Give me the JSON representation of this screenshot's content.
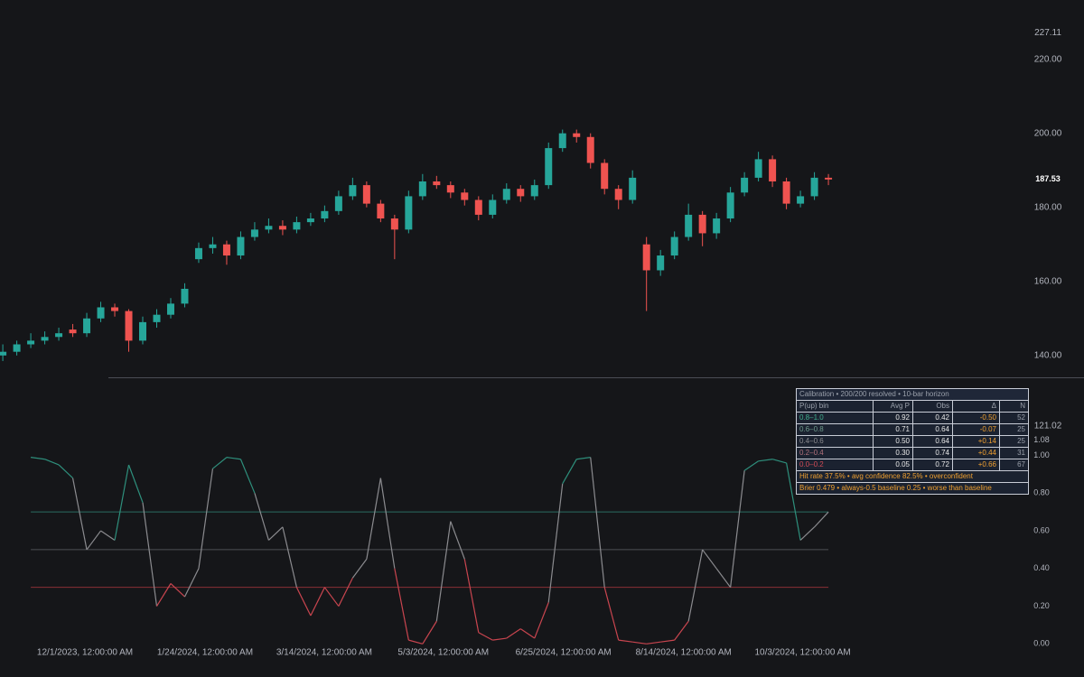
{
  "chart_data": [
    {
      "type": "candlestick",
      "up_color": "#26a69a",
      "down_color": "#ef5350",
      "xlim": [
        -0.2,
        72.1
      ],
      "ylim": [
        134.1,
        236
      ],
      "yticks": [
        {
          "value": 121.02,
          "label": "121.02"
        },
        {
          "value": 140,
          "label": "140.00"
        },
        {
          "value": 160,
          "label": "160.00"
        },
        {
          "value": 180,
          "label": "180.00"
        },
        {
          "value": 200,
          "label": "200.00"
        },
        {
          "value": 220,
          "label": "220.00"
        },
        {
          "value": 227.11,
          "label": "227.11"
        }
      ],
      "last_price": {
        "value": 187.53,
        "label": "187.53"
      },
      "candles": [
        [
          140,
          143,
          138.5,
          141
        ],
        [
          141,
          144,
          140,
          143
        ],
        [
          143,
          146,
          142,
          144
        ],
        [
          144,
          146.5,
          143,
          145
        ],
        [
          145,
          147.5,
          144,
          146
        ],
        [
          147,
          148.5,
          145,
          146
        ],
        [
          146,
          151.5,
          145,
          150
        ],
        [
          150,
          154.5,
          149,
          153
        ],
        [
          153,
          154,
          150.5,
          152
        ],
        [
          152,
          152.5,
          141,
          144
        ],
        [
          144,
          150.5,
          143,
          149
        ],
        [
          149,
          152.5,
          147.5,
          151
        ],
        [
          151,
          155.5,
          150,
          154
        ],
        [
          154,
          159.5,
          153,
          158
        ],
        [
          166,
          170.5,
          165,
          169
        ],
        [
          169,
          172,
          167.5,
          170
        ],
        [
          170,
          171,
          164.5,
          167
        ],
        [
          167,
          173.5,
          166,
          172
        ],
        [
          172,
          176,
          171,
          174
        ],
        [
          174,
          177,
          173,
          175
        ],
        [
          175,
          176.5,
          172.5,
          174
        ],
        [
          174,
          177.5,
          173,
          176
        ],
        [
          176,
          178.5,
          175,
          177
        ],
        [
          177,
          180.5,
          176,
          179
        ],
        [
          179,
          184.5,
          178,
          183
        ],
        [
          183,
          188,
          182,
          186
        ],
        [
          186,
          187,
          180,
          181
        ],
        [
          181,
          182,
          176,
          177
        ],
        [
          177,
          178,
          166,
          174
        ],
        [
          174,
          184.5,
          173,
          183
        ],
        [
          183,
          189,
          182,
          187
        ],
        [
          187,
          188.5,
          185,
          186
        ],
        [
          186,
          187,
          182.5,
          184
        ],
        [
          184,
          185,
          180.5,
          182
        ],
        [
          182,
          183,
          176.5,
          178
        ],
        [
          178,
          183.5,
          177,
          182
        ],
        [
          182,
          186.5,
          181,
          185
        ],
        [
          185,
          186,
          181.5,
          183
        ],
        [
          183,
          187.5,
          182,
          186
        ],
        [
          186,
          197.5,
          185,
          196
        ],
        [
          196,
          201,
          195,
          200
        ],
        [
          200,
          201,
          197.5,
          199
        ],
        [
          199,
          200,
          190.5,
          192
        ],
        [
          192,
          193,
          183.5,
          185
        ],
        [
          185,
          186,
          179.5,
          182
        ],
        [
          182,
          190,
          181,
          188
        ],
        [
          170,
          172,
          152,
          163
        ],
        [
          163,
          168.5,
          161.5,
          167
        ],
        [
          167,
          173.5,
          166,
          172
        ],
        [
          172,
          181,
          171,
          178
        ],
        [
          178,
          179,
          169.5,
          173
        ],
        [
          173,
          178.5,
          171.5,
          177
        ],
        [
          177,
          185.5,
          176,
          184
        ],
        [
          184,
          189.5,
          183,
          188
        ],
        [
          188,
          195,
          187,
          193
        ],
        [
          193,
          194,
          185.5,
          187
        ],
        [
          187,
          188,
          179.5,
          181
        ],
        [
          181,
          184.5,
          180,
          183
        ],
        [
          183,
          189.5,
          182,
          188
        ],
        [
          188,
          189,
          186,
          187.53
        ]
      ]
    },
    {
      "type": "line",
      "xlim": [
        -0.2,
        72.1
      ],
      "ylim": [
        -0.08,
        1.405
      ],
      "yticks": [
        {
          "value": 0,
          "label": "0.00"
        },
        {
          "value": 0.2,
          "label": "0.20"
        },
        {
          "value": 0.4,
          "label": "0.40"
        },
        {
          "value": 0.6,
          "label": "0.60"
        },
        {
          "value": 0.8,
          "label": "0.80"
        },
        {
          "value": 1,
          "label": "1.00"
        },
        {
          "value": 1.08,
          "label": "1.08"
        }
      ],
      "xticks": [
        {
          "value": 5.87,
          "label": "12/1/2023, 12:00:00 AM"
        },
        {
          "value": 14.45,
          "label": "1/24/2024, 12:00:00 AM"
        },
        {
          "value": 22.97,
          "label": "3/14/2024, 12:00:00 AM"
        },
        {
          "value": 31.48,
          "label": "5/3/2024, 12:00:00 AM"
        },
        {
          "value": 40.06,
          "label": "6/25/2024, 12:00:00 AM"
        },
        {
          "value": 48.65,
          "label": "8/14/2024, 12:00:00 AM"
        },
        {
          "value": 57.16,
          "label": "10/3/2024, 12:00:00 AM"
        }
      ],
      "levels": [
        {
          "value": 0.7,
          "color": "#2b6e62"
        },
        {
          "value": 0.5,
          "color": "#4d4f55"
        },
        {
          "value": 0.3,
          "color": "#8a2f36"
        }
      ],
      "colors": {
        "high": "#2e8f7c",
        "mid": "#8b8b8f",
        "low": "#c9454f"
      },
      "x": [
        2,
        3,
        4,
        5,
        6,
        7,
        8,
        9,
        10,
        11,
        12,
        13,
        14,
        15,
        16,
        17,
        18,
        19,
        20,
        21,
        22,
        23,
        24,
        25,
        26,
        27,
        28,
        29,
        30,
        31,
        32,
        33,
        34,
        35,
        36,
        37,
        38,
        39,
        40,
        41,
        42,
        43,
        44,
        45,
        46,
        47,
        48,
        49,
        50,
        51,
        52,
        53,
        54,
        55,
        56,
        57,
        58,
        59
      ],
      "values": [
        0.99,
        0.98,
        0.95,
        0.88,
        0.5,
        0.6,
        0.55,
        0.95,
        0.75,
        0.2,
        0.32,
        0.25,
        0.4,
        0.93,
        0.99,
        0.98,
        0.8,
        0.55,
        0.62,
        0.3,
        0.15,
        0.3,
        0.2,
        0.35,
        0.45,
        0.88,
        0.4,
        0.02,
        0.0,
        0.12,
        0.65,
        0.45,
        0.06,
        0.02,
        0.03,
        0.08,
        0.03,
        0.22,
        0.85,
        0.98,
        0.99,
        0.3,
        0.02,
        0.01,
        0.0,
        0.01,
        0.02,
        0.12,
        0.5,
        0.4,
        0.3,
        0.92,
        0.97,
        0.98,
        0.96,
        0.55,
        0.62,
        0.7
      ]
    }
  ],
  "table": {
    "title": "Calibration • 200/200 resolved • 10-bar horizon",
    "header": [
      "P(up) bin",
      "Avg P",
      "Obs",
      "Δ",
      "N"
    ],
    "row_colors": [
      "#3fae8e",
      "#6f9a8c",
      "#8b8b8f",
      "#b0707a",
      "#d04a55"
    ],
    "rows": [
      [
        "0.8–1.0",
        "0.92",
        "0.42",
        "-0.50",
        "52"
      ],
      [
        "0.6–0.8",
        "0.71",
        "0.64",
        "-0.07",
        "25"
      ],
      [
        "0.4–0.6",
        "0.50",
        "0.64",
        "+0.14",
        "25"
      ],
      [
        "0.2–0.4",
        "0.30",
        "0.74",
        "+0.44",
        "31"
      ],
      [
        "0.0–0.2",
        "0.05",
        "0.72",
        "+0.66",
        "67"
      ]
    ],
    "footer": [
      "Hit rate 37.5% • avg confidence 82.5% • overconfident",
      "Brier 0.479 • always-0.5 baseline 0.25 • worse than baseline"
    ]
  }
}
